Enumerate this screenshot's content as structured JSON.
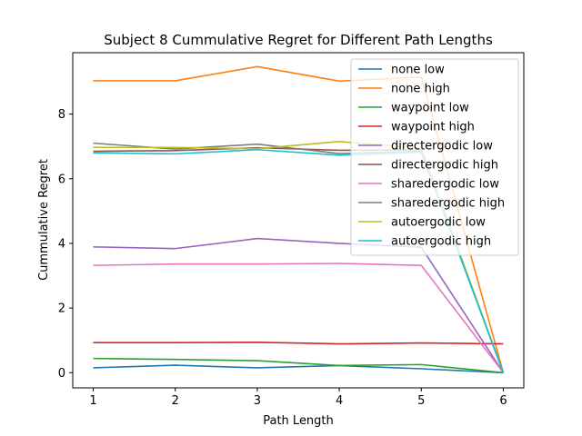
{
  "chart_data": {
    "type": "line",
    "title": "Subject 8 Cummulative Regret for Different Path Lengths",
    "xlabel": "Path Length",
    "ylabel": "Cummulative Regret",
    "x": [
      1,
      2,
      3,
      4,
      5,
      6
    ],
    "xlim": [
      0.75,
      6.25
    ],
    "ylim": [
      -0.47,
      9.9
    ],
    "xticks": [
      "1",
      "2",
      "3",
      "4",
      "5",
      "6"
    ],
    "yticks": [
      "0",
      "2",
      "4",
      "6",
      "8"
    ],
    "grid": false,
    "legend_position": "upper-right",
    "series": [
      {
        "name": "none low",
        "color": "#1f77b4",
        "values": [
          0.15,
          0.23,
          0.15,
          0.22,
          0.12,
          0.0
        ]
      },
      {
        "name": "none high",
        "color": "#ff7f0e",
        "values": [
          9.03,
          9.03,
          9.47,
          9.02,
          9.15,
          0.0
        ]
      },
      {
        "name": "waypoint low",
        "color": "#2ca02c",
        "values": [
          0.44,
          0.41,
          0.37,
          0.22,
          0.25,
          0.0
        ]
      },
      {
        "name": "waypoint high",
        "color": "#d62728",
        "values": [
          0.93,
          0.93,
          0.94,
          0.89,
          0.92,
          0.89
        ]
      },
      {
        "name": "directergodic low",
        "color": "#9467bd",
        "values": [
          3.89,
          3.84,
          4.15,
          4.0,
          3.88,
          0.0
        ]
      },
      {
        "name": "directergodic high",
        "color": "#8c564b",
        "values": [
          6.85,
          6.87,
          6.96,
          6.88,
          6.9,
          0.0
        ]
      },
      {
        "name": "sharedergodic low",
        "color": "#e377c2",
        "values": [
          3.32,
          3.36,
          3.36,
          3.38,
          3.32,
          0.0
        ]
      },
      {
        "name": "sharedergodic high",
        "color": "#7f7f7f",
        "values": [
          7.1,
          6.92,
          7.07,
          6.78,
          6.85,
          0.0
        ]
      },
      {
        "name": "autoergodic low",
        "color": "#bcbd22",
        "values": [
          6.97,
          6.97,
          6.93,
          7.15,
          6.95,
          0.0
        ]
      },
      {
        "name": "autoergodic high",
        "color": "#17becf",
        "values": [
          6.8,
          6.77,
          6.9,
          6.73,
          6.82,
          0.0
        ]
      }
    ]
  }
}
